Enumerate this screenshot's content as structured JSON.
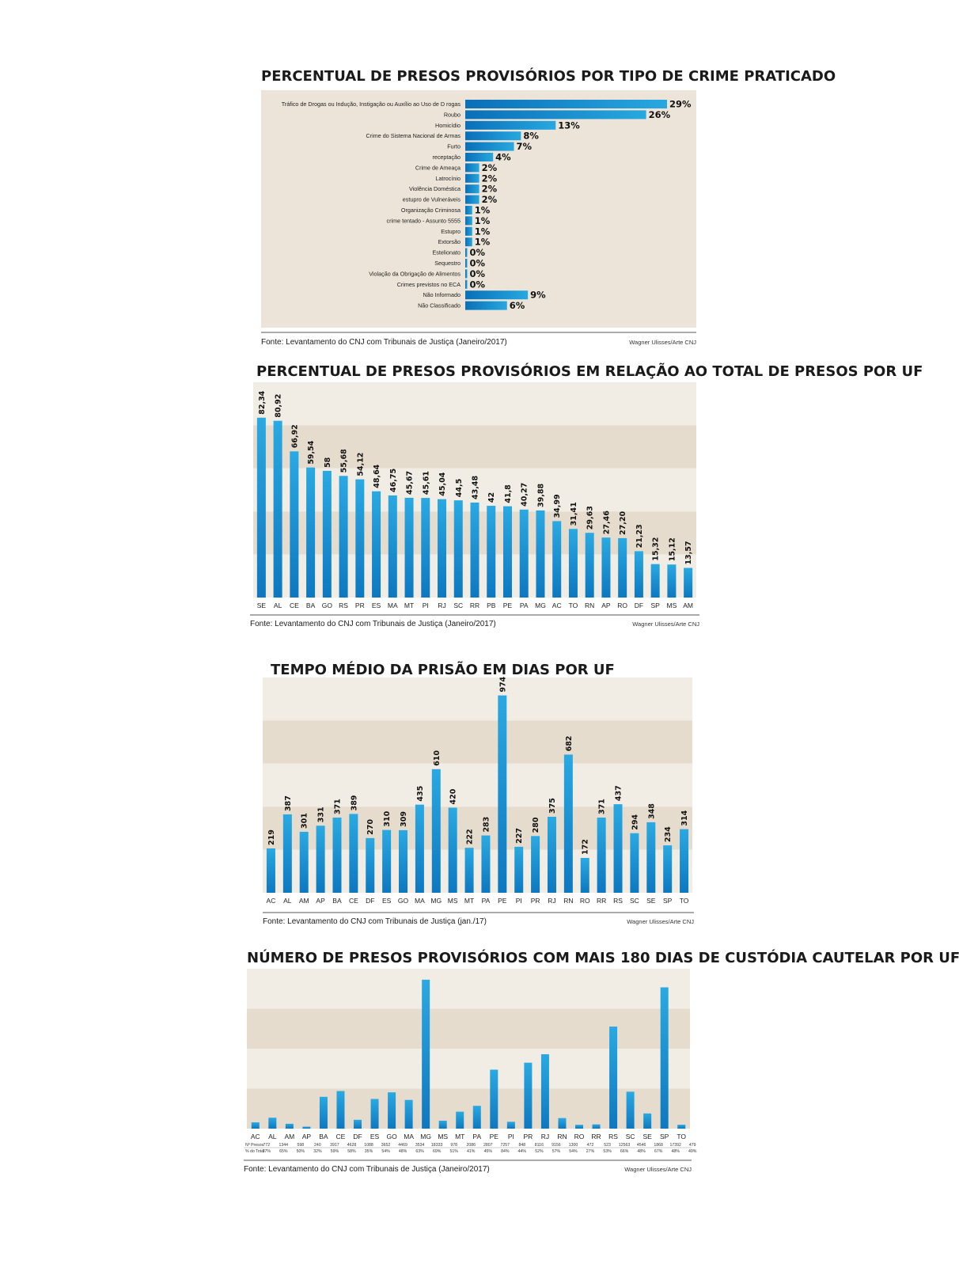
{
  "chart_data": [
    {
      "type": "bar",
      "orientation": "horizontal",
      "title": "PERCENTUAL DE PRESOS PROVISÓRIOS POR TIPO DE CRIME PRATICADO",
      "categories": [
        "Tráfico de Drogas ou Indução, Instigação ou Auxílio ao Uso de D rogas",
        "Roubo",
        "Homicídio",
        "Crime do Sistema Nacional de Armas",
        "Furto",
        "receptação",
        "Crime de Ameaça",
        "Latrocínio",
        "Violência Doméstica",
        "estupro de Vulneráveis",
        "Organização Criminosa",
        "crime tentado - Assunto 5555",
        "Estupro",
        "Extorsão",
        "Estelionato",
        "Sequestro",
        "Violação da Obrigação de Alimentos",
        "Crimes previstos no ECA",
        "Não Informado",
        "Não Classificado"
      ],
      "values": [
        29,
        26,
        13,
        8,
        7,
        4,
        2,
        2,
        2,
        2,
        1,
        1,
        1,
        1,
        0,
        0,
        0,
        0,
        9,
        6
      ],
      "value_labels": [
        "29%",
        "26%",
        "13%",
        "8%",
        "7%",
        "4%",
        "2%",
        "2%",
        "2%",
        "2%",
        "1%",
        "1%",
        "1%",
        "1%",
        "0%",
        "0%",
        "0%",
        "0%",
        "9%",
        "6%"
      ],
      "xlim": [
        0,
        29
      ],
      "source": "Fonte: Levantamento do CNJ com Tribunais de Justiça (Janeiro/2017)",
      "credit": "Wagner Ulisses/Arte CNJ"
    },
    {
      "type": "bar",
      "title": "PERCENTUAL DE PRESOS PROVISÓRIOS EM RELAÇÃO AO TOTAL DE PRESOS POR UF",
      "categories": [
        "SE",
        "AL",
        "CE",
        "BA",
        "GO",
        "RS",
        "PR",
        "ES",
        "MA",
        "MT",
        "PI",
        "RJ",
        "SC",
        "RR",
        "PB",
        "PE",
        "PA",
        "MG",
        "AC",
        "TO",
        "RN",
        "AP",
        "RO",
        "DF",
        "SP",
        "MS",
        "AM"
      ],
      "values": [
        82.34,
        80.92,
        66.92,
        59.54,
        58,
        55.68,
        54.12,
        48.64,
        46.75,
        45.67,
        45.61,
        45.04,
        44.5,
        43.48,
        42,
        41.8,
        40.27,
        39.88,
        34.99,
        31.41,
        29.63,
        27.46,
        27.2,
        21.23,
        15.32,
        15.12,
        13.57
      ],
      "value_labels": [
        "82,34",
        "80,92",
        "66,92",
        "59,54",
        "58",
        "55,68",
        "54,12",
        "48,64",
        "46,75",
        "45,67",
        "45,61",
        "45,04",
        "44,5",
        "43,48",
        "42",
        "41,8",
        "40,27",
        "39,88",
        "34,99",
        "31,41",
        "29,63",
        "27,46",
        "27,20",
        "21,23",
        "15,32",
        "15,12",
        "13,57"
      ],
      "ylim": [
        0,
        100
      ],
      "source": "Fonte: Levantamento do CNJ com Tribunais de Justiça (Janeiro/2017)",
      "credit": "Wagner Ulisses/Arte CNJ"
    },
    {
      "type": "bar",
      "title": "TEMPO MÉDIO DA PRISÃO EM DIAS POR UF",
      "categories": [
        "AC",
        "AL",
        "AM",
        "AP",
        "BA",
        "CE",
        "DF",
        "ES",
        "GO",
        "MA",
        "MG",
        "MS",
        "MT",
        "PA",
        "PE",
        "PI",
        "PR",
        "RJ",
        "RN",
        "RO",
        "RR",
        "RS",
        "SC",
        "SE",
        "SP",
        "TO"
      ],
      "values": [
        219,
        387,
        301,
        331,
        371,
        389,
        270,
        310,
        309,
        435,
        610,
        420,
        222,
        283,
        974,
        227,
        280,
        375,
        682,
        172,
        371,
        437,
        294,
        348,
        234,
        314
      ],
      "ylim": [
        0,
        1000
      ],
      "source": "Fonte: Levantamento do CNJ com Tribunais de Justiça (jan./17)",
      "credit": "Wagner Ulisses/Arte CNJ"
    },
    {
      "type": "bar",
      "title": "NÚMERO DE PRESOS PROVISÓRIOS COM MAIS 180 DIAS DE CUSTÓDIA CAUTELAR POR UF",
      "categories": [
        "AC",
        "AL",
        "AM",
        "AP",
        "BA",
        "CE",
        "DF",
        "ES",
        "GO",
        "MA",
        "MG",
        "MS",
        "MT",
        "PA",
        "PE",
        "PI",
        "PR",
        "RJ",
        "RN",
        "RO",
        "RR",
        "RS",
        "SC",
        "SE",
        "SP",
        "TO"
      ],
      "values": [
        772,
        1344,
        598,
        240,
        3917,
        4628,
        1088,
        3652,
        4469,
        3534,
        18333,
        978,
        2086,
        2807,
        7257,
        848,
        8116,
        9156,
        1300,
        472,
        523,
        12563,
        4546,
        1868,
        17392,
        479
      ],
      "row_labels": [
        "Nº Presos",
        "% do Total"
      ],
      "table_counts": [
        "772",
        "1344",
        "598",
        "240",
        "3917",
        "4628",
        "1088",
        "3652",
        "4469",
        "3534",
        "18333",
        "978",
        "2086",
        "2807",
        "7257",
        "848",
        "8116",
        "9156",
        "1300",
        "472",
        "523",
        "12563",
        "4546",
        "1868",
        "17392",
        "479"
      ],
      "table_percents": [
        "37%",
        "65%",
        "50%",
        "32%",
        "59%",
        "58%",
        "35%",
        "54%",
        "48%",
        "63%",
        "69%",
        "51%",
        "41%",
        "45%",
        "84%",
        "44%",
        "52%",
        "57%",
        "54%",
        "27%",
        "53%",
        "66%",
        "48%",
        "67%",
        "48%",
        "49%"
      ],
      "ylim": [
        0,
        19000
      ],
      "source": "Fonte: Levantamento do CNJ com Tribunais de Justiça (Janeiro/2017)",
      "credit": "Wagner Ulisses/Arte CNJ"
    }
  ]
}
